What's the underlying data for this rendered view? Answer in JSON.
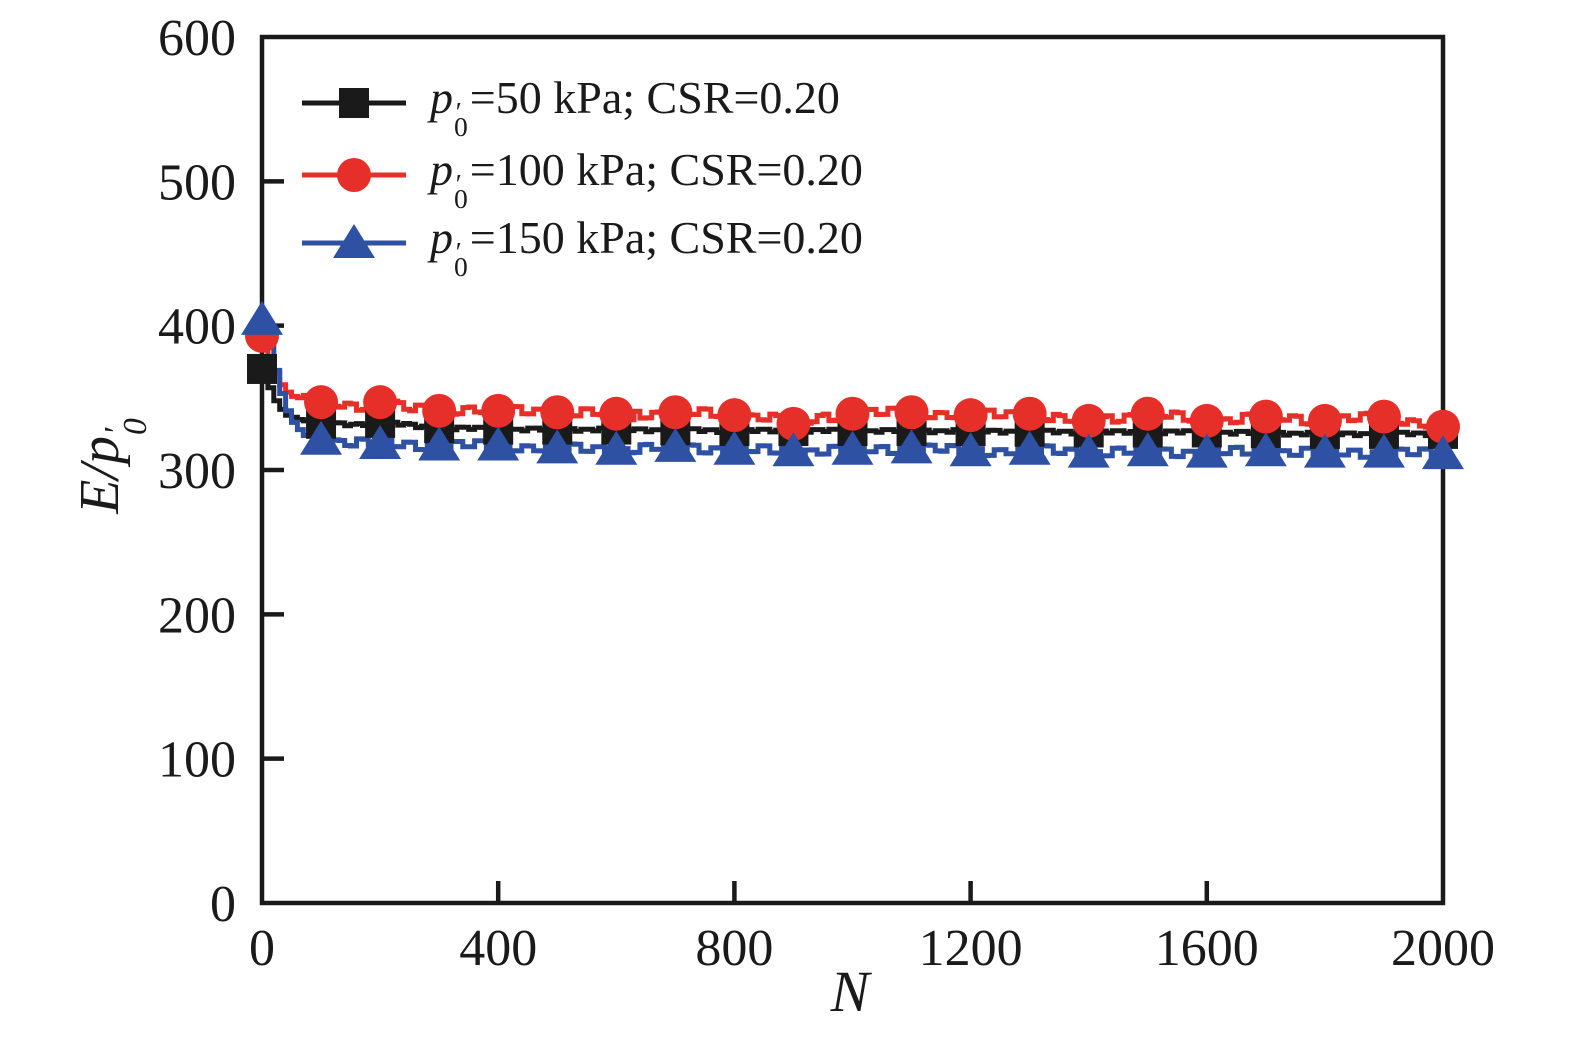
{
  "figure": {
    "background": "#ffffff",
    "frame_color": "#1a1a1a"
  },
  "axes": {
    "x": {
      "label": "N",
      "ticks": [
        0,
        400,
        800,
        1200,
        1600,
        2000
      ]
    },
    "y": {
      "label_pre": "E/p",
      "label_prime": "′",
      "label_sub": "0",
      "ticks": [
        0,
        100,
        200,
        300,
        400,
        500,
        600
      ]
    }
  },
  "legend": {
    "items": [
      {
        "series": "p50",
        "p": "p",
        "prime": "′",
        "sub": "0",
        "rest": "=50 kPa; CSR=0.20"
      },
      {
        "series": "p100",
        "p": "p",
        "prime": "′",
        "sub": "0",
        "rest": "=100 kPa; CSR=0.20"
      },
      {
        "series": "p150",
        "p": "p",
        "prime": "′",
        "sub": "0",
        "rest": "=150 kPa; CSR=0.20"
      }
    ]
  },
  "chart_data": {
    "type": "line",
    "title": "",
    "xlabel": "N",
    "ylabel": "E/p'0",
    "xlim": [
      0,
      2000
    ],
    "ylim": [
      0,
      600
    ],
    "grid": false,
    "legend_position": "upper-left-inside",
    "sample_step": 10,
    "noise_pattern": [
      1,
      -0.5,
      0.55,
      -1,
      0.2,
      -0.75,
      0.85,
      -0.3
    ],
    "series": [
      {
        "id": "p50",
        "name": "p'0=50 kPa; CSR=0.20",
        "color": "#1a1a1a",
        "marker": "square",
        "marker_step": 100,
        "noise": {
          "amp": 1.2,
          "period": 15,
          "start": 90
        },
        "anchors": [
          [
            0,
            370
          ],
          [
            10,
            357
          ],
          [
            20,
            348
          ],
          [
            30,
            342
          ],
          [
            40,
            338
          ],
          [
            60,
            335
          ],
          [
            80,
            333
          ],
          [
            100,
            332
          ],
          [
            150,
            331
          ],
          [
            190,
            333
          ],
          [
            220,
            332
          ],
          [
            260,
            330
          ],
          [
            300,
            329
          ],
          [
            400,
            328
          ],
          [
            600,
            328
          ],
          [
            800,
            327
          ],
          [
            1000,
            327
          ],
          [
            1200,
            327
          ],
          [
            1400,
            326
          ],
          [
            1600,
            326
          ],
          [
            1800,
            325
          ],
          [
            2000,
            325
          ]
        ]
      },
      {
        "id": "p100",
        "name": "p'0=100 kPa; CSR=0.20",
        "color": "#e62f28",
        "marker": "circle",
        "marker_step": 100,
        "noise": {
          "amp": 3.2,
          "period": 20,
          "start": 70
        },
        "anchors": [
          [
            0,
            393
          ],
          [
            10,
            378
          ],
          [
            20,
            367
          ],
          [
            30,
            359
          ],
          [
            40,
            354
          ],
          [
            50,
            351
          ],
          [
            60,
            350
          ],
          [
            80,
            348
          ],
          [
            100,
            347
          ],
          [
            150,
            344
          ],
          [
            200,
            347
          ],
          [
            250,
            342
          ],
          [
            300,
            341
          ],
          [
            350,
            343
          ],
          [
            400,
            341
          ],
          [
            500,
            340
          ],
          [
            510,
            334
          ],
          [
            520,
            340
          ],
          [
            600,
            339
          ],
          [
            620,
            333
          ],
          [
            630,
            339
          ],
          [
            700,
            340
          ],
          [
            800,
            338
          ],
          [
            850,
            337
          ],
          [
            900,
            332
          ],
          [
            950,
            337
          ],
          [
            1000,
            339
          ],
          [
            1100,
            340
          ],
          [
            1200,
            338
          ],
          [
            1300,
            339
          ],
          [
            1350,
            335
          ],
          [
            1400,
            334
          ],
          [
            1450,
            337
          ],
          [
            1500,
            339
          ],
          [
            1600,
            334
          ],
          [
            1700,
            337
          ],
          [
            1800,
            334
          ],
          [
            1900,
            337
          ],
          [
            2000,
            330
          ]
        ]
      },
      {
        "id": "p150",
        "name": "p'0=150 kPa; CSR=0.20",
        "color": "#2f51a3",
        "marker": "triangle",
        "marker_step": 100,
        "noise": {
          "amp": 3.2,
          "period": 20,
          "start": 70
        },
        "anchors": [
          [
            0,
            404
          ],
          [
            10,
            385
          ],
          [
            20,
            369
          ],
          [
            30,
            353
          ],
          [
            40,
            341
          ],
          [
            50,
            333
          ],
          [
            60,
            328
          ],
          [
            80,
            323
          ],
          [
            100,
            321
          ],
          [
            150,
            319
          ],
          [
            200,
            318
          ],
          [
            300,
            317
          ],
          [
            400,
            317
          ],
          [
            500,
            315
          ],
          [
            600,
            314
          ],
          [
            700,
            316
          ],
          [
            800,
            314
          ],
          [
            900,
            313
          ],
          [
            1000,
            314
          ],
          [
            1100,
            315
          ],
          [
            1200,
            313
          ],
          [
            1300,
            314
          ],
          [
            1400,
            312
          ],
          [
            1500,
            313
          ],
          [
            1600,
            312
          ],
          [
            1700,
            313
          ],
          [
            1800,
            312
          ],
          [
            1900,
            312
          ],
          [
            2000,
            311
          ]
        ]
      }
    ]
  }
}
